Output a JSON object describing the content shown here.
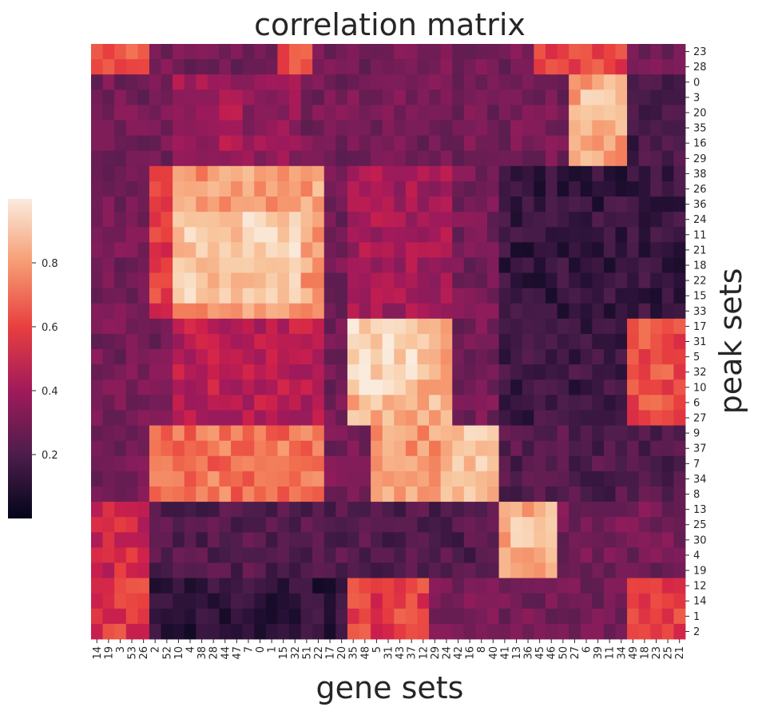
{
  "chart_data": {
    "type": "heatmap",
    "title": "correlation matrix",
    "xlabel": "gene sets",
    "ylabel": "peak sets",
    "x_categories": [
      "14",
      "19",
      "3",
      "53",
      "26",
      "2",
      "52",
      "10",
      "4",
      "38",
      "28",
      "44",
      "47",
      "7",
      "0",
      "1",
      "15",
      "32",
      "51",
      "22",
      "17",
      "20",
      "35",
      "48",
      "5",
      "31",
      "43",
      "37",
      "12",
      "29",
      "24",
      "42",
      "16",
      "8",
      "40",
      "41",
      "13",
      "36",
      "45",
      "46",
      "50",
      "27",
      "6",
      "39",
      "11",
      "34",
      "49",
      "18",
      "23",
      "25",
      "21"
    ],
    "y_categories": [
      "23",
      "28",
      "0",
      "3",
      "20",
      "35",
      "16",
      "29",
      "38",
      "26",
      "36",
      "24",
      "11",
      "21",
      "18",
      "22",
      "15",
      "33",
      "17",
      "31",
      "5",
      "32",
      "10",
      "6",
      "27",
      "9",
      "37",
      "7",
      "34",
      "8",
      "13",
      "25",
      "30",
      "4",
      "19",
      "12",
      "14",
      "1",
      "2"
    ],
    "colorbar": {
      "ticks": [
        0.2,
        0.4,
        0.6,
        0.8
      ],
      "vmin": 0.0,
      "vmax": 1.0
    },
    "colormap": "rocket",
    "cluster_blocks": [
      {
        "rows": [
          0,
          1
        ],
        "cols": [
          0,
          4
        ],
        "value": 0.65
      },
      {
        "rows": [
          0,
          1
        ],
        "cols": [
          16,
          18
        ],
        "value": 0.65
      },
      {
        "rows": [
          0,
          1
        ],
        "cols": [
          38,
          45
        ],
        "value": 0.62
      },
      {
        "rows": [
          2,
          7
        ],
        "cols": [
          7,
          12
        ],
        "value": 0.45
      },
      {
        "rows": [
          2,
          7
        ],
        "cols": [
          13,
          17
        ],
        "value": 0.4
      },
      {
        "rows": [
          2,
          7
        ],
        "cols": [
          41,
          45
        ],
        "value": 0.82
      },
      {
        "rows": [
          3,
          4
        ],
        "cols": [
          42,
          44
        ],
        "value": 0.95
      },
      {
        "rows": [
          2,
          7
        ],
        "cols": [
          46,
          50
        ],
        "value": 0.18
      },
      {
        "rows": [
          8,
          17
        ],
        "cols": [
          7,
          12
        ],
        "value": 0.8
      },
      {
        "rows": [
          8,
          17
        ],
        "cols": [
          13,
          19
        ],
        "value": 0.82
      },
      {
        "rows": [
          11,
          16
        ],
        "cols": [
          7,
          12
        ],
        "value": 0.9
      },
      {
        "rows": [
          11,
          16
        ],
        "cols": [
          13,
          17
        ],
        "value": 0.92
      },
      {
        "rows": [
          8,
          17
        ],
        "cols": [
          5,
          6
        ],
        "value": 0.62
      },
      {
        "rows": [
          8,
          17
        ],
        "cols": [
          22,
          30
        ],
        "value": 0.45
      },
      {
        "rows": [
          8,
          17
        ],
        "cols": [
          35,
          50
        ],
        "value": 0.14
      },
      {
        "rows": [
          18,
          24
        ],
        "cols": [
          22,
          30
        ],
        "value": 0.86
      },
      {
        "rows": [
          18,
          22
        ],
        "cols": [
          22,
          27
        ],
        "value": 0.94
      },
      {
        "rows": [
          18,
          24
        ],
        "cols": [
          7,
          19
        ],
        "value": 0.5
      },
      {
        "rows": [
          18,
          24
        ],
        "cols": [
          46,
          50
        ],
        "value": 0.66
      },
      {
        "rows": [
          18,
          24
        ],
        "cols": [
          35,
          45
        ],
        "value": 0.16
      },
      {
        "rows": [
          25,
          29
        ],
        "cols": [
          24,
          34
        ],
        "value": 0.8
      },
      {
        "rows": [
          25,
          29
        ],
        "cols": [
          30,
          34
        ],
        "value": 0.88
      },
      {
        "rows": [
          25,
          29
        ],
        "cols": [
          5,
          19
        ],
        "value": 0.72
      },
      {
        "rows": [
          25,
          29
        ],
        "cols": [
          35,
          50
        ],
        "value": 0.22
      },
      {
        "rows": [
          30,
          34
        ],
        "cols": [
          35,
          39
        ],
        "value": 0.85
      },
      {
        "rows": [
          31,
          32
        ],
        "cols": [
          36,
          38
        ],
        "value": 0.96
      },
      {
        "rows": [
          30,
          34
        ],
        "cols": [
          5,
          34
        ],
        "value": 0.22
      },
      {
        "rows": [
          30,
          34
        ],
        "cols": [
          0,
          4
        ],
        "value": 0.55
      },
      {
        "rows": [
          35,
          38
        ],
        "cols": [
          22,
          28
        ],
        "value": 0.62
      },
      {
        "rows": [
          35,
          38
        ],
        "cols": [
          0,
          4
        ],
        "value": 0.6
      },
      {
        "rows": [
          35,
          38
        ],
        "cols": [
          46,
          50
        ],
        "value": 0.62
      },
      {
        "rows": [
          35,
          38
        ],
        "cols": [
          5,
          21
        ],
        "value": 0.12
      }
    ]
  }
}
